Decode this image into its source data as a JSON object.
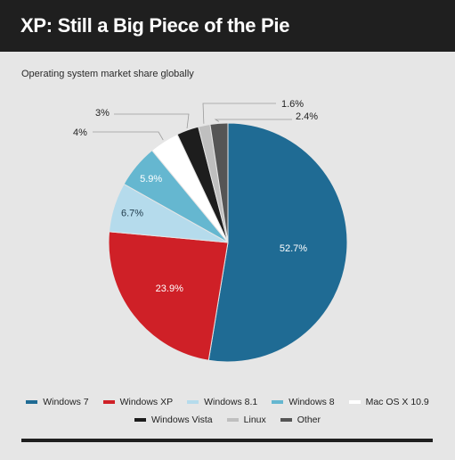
{
  "header": {
    "title": "XP: Still a Big Piece of the Pie"
  },
  "chart_data": {
    "type": "pie",
    "title": "XP: Still a Big Piece of the Pie",
    "subtitle": "Operating system market share globally",
    "start_angle_deg": 0,
    "direction": "clockwise",
    "slices": [
      {
        "label": "Windows 7",
        "value": 52.7,
        "display": "52.7%",
        "color": "#1f6b94"
      },
      {
        "label": "Windows XP",
        "value": 23.9,
        "display": "23.9%",
        "color": "#cf2027"
      },
      {
        "label": "Windows 8.1",
        "value": 6.7,
        "display": "6.7%",
        "color": "#b5dbec"
      },
      {
        "label": "Windows 8",
        "value": 5.9,
        "display": "5.9%",
        "color": "#65b7d0"
      },
      {
        "label": "Mac OS X 10.9",
        "value": 4.0,
        "display": "4%",
        "color": "#ffffff"
      },
      {
        "label": "Windows Vista",
        "value": 3.0,
        "display": "3%",
        "color": "#1d1d1d"
      },
      {
        "label": "Linux",
        "value": 1.6,
        "display": "1.6%",
        "color": "#bfbfbf"
      },
      {
        "label": "Other",
        "value": 2.4,
        "display": "2.4%",
        "color": "#555555"
      }
    ],
    "legend": {
      "placement": "bottom",
      "rows": [
        [
          "Windows 7",
          "Windows XP",
          "Windows 8.1",
          "Windows 8",
          "Mac OS X 10.9"
        ],
        [
          "Windows Vista",
          "Linux",
          "Other"
        ]
      ]
    }
  }
}
